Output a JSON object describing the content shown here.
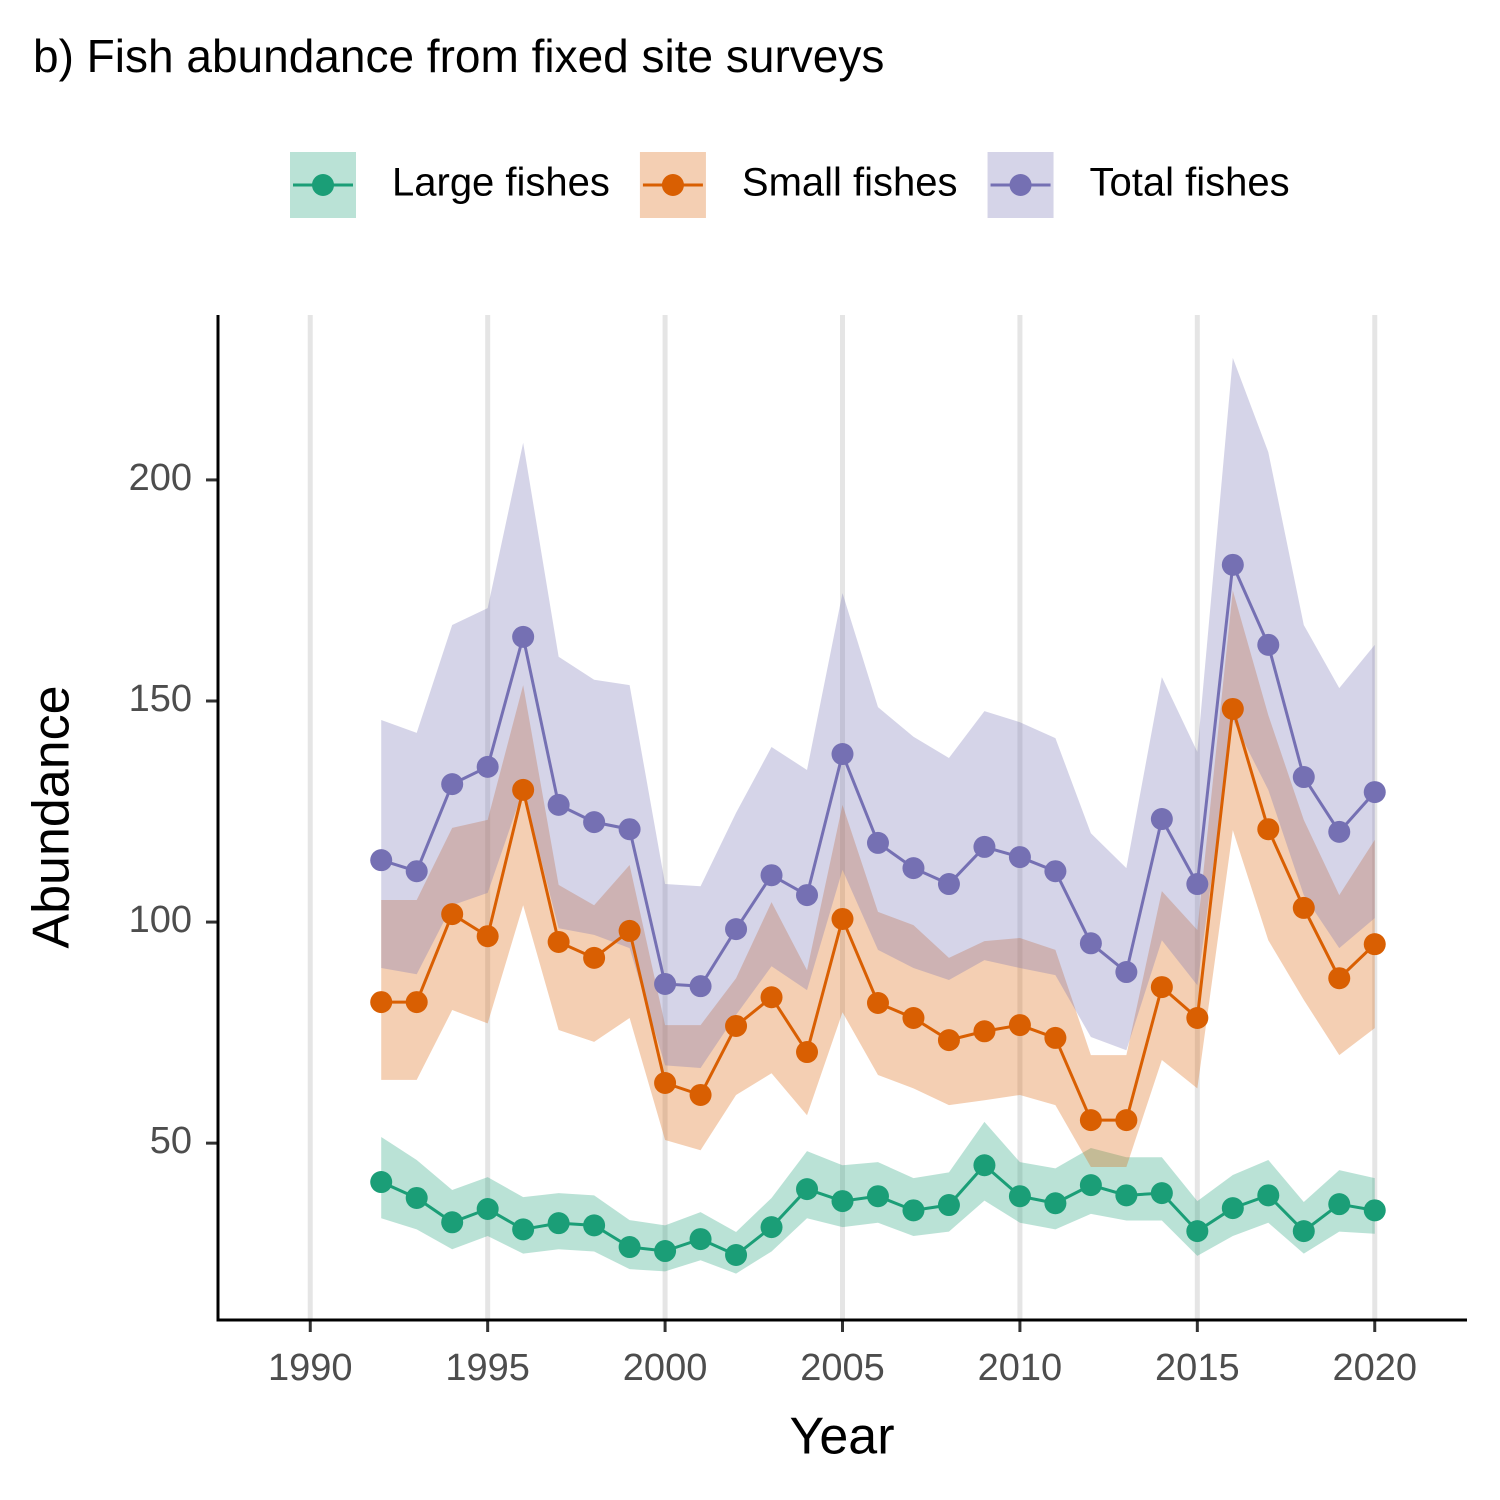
{
  "chart_data": {
    "type": "line",
    "title": "b) Fish abundance from fixed site surveys",
    "xlabel": "Year",
    "ylabel": "Abundance",
    "x": [
      1992,
      1993,
      1994,
      1995,
      1996,
      1997,
      1998,
      1999,
      2000,
      2001,
      2002,
      2003,
      2004,
      2005,
      2006,
      2007,
      2008,
      2009,
      2010,
      2011,
      2012,
      2013,
      2014,
      2015,
      2016,
      2017,
      2018,
      2019,
      2020
    ],
    "series": [
      {
        "name": "Large fishes",
        "color": "#1b9e77",
        "values": [
          41.2,
          37.6,
          32.1,
          35.1,
          30.5,
          31.9,
          31.4,
          26.5,
          25.6,
          28.3,
          24.7,
          31,
          39.6,
          36.9,
          38,
          34.8,
          36,
          45,
          38,
          36.4,
          40.5,
          38.2,
          38.7,
          30.1,
          35.3,
          38.2,
          30.1,
          36.2,
          34.8
        ],
        "upper": [
          51.4,
          46.2,
          39.4,
          42.3,
          37.8,
          38.7,
          38.2,
          32.6,
          31.4,
          34.4,
          29.9,
          37.6,
          48.2,
          45,
          45.7,
          42.1,
          43.4,
          54.8,
          45.7,
          44.3,
          48.9,
          46.8,
          46.8,
          36.9,
          42.8,
          46.2,
          36.7,
          43.9,
          42.1
        ],
        "lower": [
          33,
          30.5,
          26,
          29,
          25,
          26,
          25.5,
          21.5,
          21,
          23.5,
          20.5,
          25.5,
          33,
          31,
          32,
          29,
          30,
          37,
          32,
          30.5,
          34,
          32.5,
          32.5,
          24.5,
          29,
          32,
          25,
          30,
          29.5
        ]
      },
      {
        "name": "Small fishes",
        "color": "#d95f02",
        "values": [
          81.9,
          81.9,
          101.8,
          96.8,
          129.9,
          95.5,
          91.9,
          98,
          63.6,
          60.9,
          76.5,
          83,
          70.6,
          100.7,
          81.7,
          78.3,
          73.3,
          75.3,
          76.7,
          73.8,
          55.2,
          55.2,
          85.3,
          78.3,
          148.2,
          121,
          103.2,
          87.3,
          95
        ],
        "upper": [
          105,
          105,
          121.3,
          123.1,
          153.6,
          108.4,
          103.8,
          112.9,
          76.7,
          76.7,
          87.3,
          104.5,
          89.1,
          126.5,
          102.3,
          99.3,
          91.9,
          95.7,
          96.4,
          93.7,
          69.9,
          69.9,
          107,
          98.2,
          175,
          146.8,
          123.1,
          106.1,
          118.6
        ],
        "lower": [
          64.3,
          64.3,
          80.1,
          77.1,
          103.8,
          75.6,
          72.9,
          78.3,
          50.7,
          48.4,
          60.9,
          65.8,
          56.3,
          79.6,
          65.4,
          62.4,
          58.6,
          59.7,
          60.9,
          58.6,
          44.6,
          44.6,
          68.8,
          62.4,
          120.8,
          95.9,
          82.4,
          69.9,
          76
        ]
      },
      {
        "name": "Total fishes",
        "color": "#7570b3",
        "values": [
          114,
          111.5,
          131.2,
          135.1,
          164.5,
          126.5,
          122.6,
          121,
          86,
          85.5,
          98.4,
          110.6,
          106.1,
          138,
          117.9,
          112.2,
          108.6,
          117,
          114.7,
          111.5,
          95.2,
          88.7,
          123.3,
          108.6,
          180.8,
          162.7,
          132.8,
          120.4,
          129.4
        ],
        "upper": [
          145.7,
          142.8,
          167.2,
          171,
          208.4,
          160,
          154.8,
          153.6,
          108.6,
          108.1,
          124.7,
          139.6,
          134.4,
          174.4,
          148.6,
          141.9,
          137.1,
          147.7,
          145.2,
          141.6,
          120.1,
          112.2,
          155.4,
          138.5,
          227.6,
          206.3,
          167.2,
          152.9,
          162.7
        ],
        "lower": [
          89.6,
          88.2,
          103.8,
          106.6,
          129.9,
          98.6,
          97.1,
          94.1,
          67.6,
          67,
          79,
          90,
          84.6,
          111.8,
          93.7,
          89.6,
          86.9,
          91.4,
          89.6,
          88,
          74,
          71,
          95.9,
          85.7,
          145.7,
          129.9,
          106.1,
          94.1,
          100.9
        ]
      }
    ],
    "xlim": [
      1987.4,
      2022.6
    ],
    "xticks": [
      1990,
      1995,
      2000,
      2005,
      2010,
      2015,
      2020
    ],
    "ylim": [
      10,
      237.3
    ],
    "yticks": [
      50,
      100,
      150,
      200
    ],
    "grid": "x",
    "legend_position": "top"
  }
}
